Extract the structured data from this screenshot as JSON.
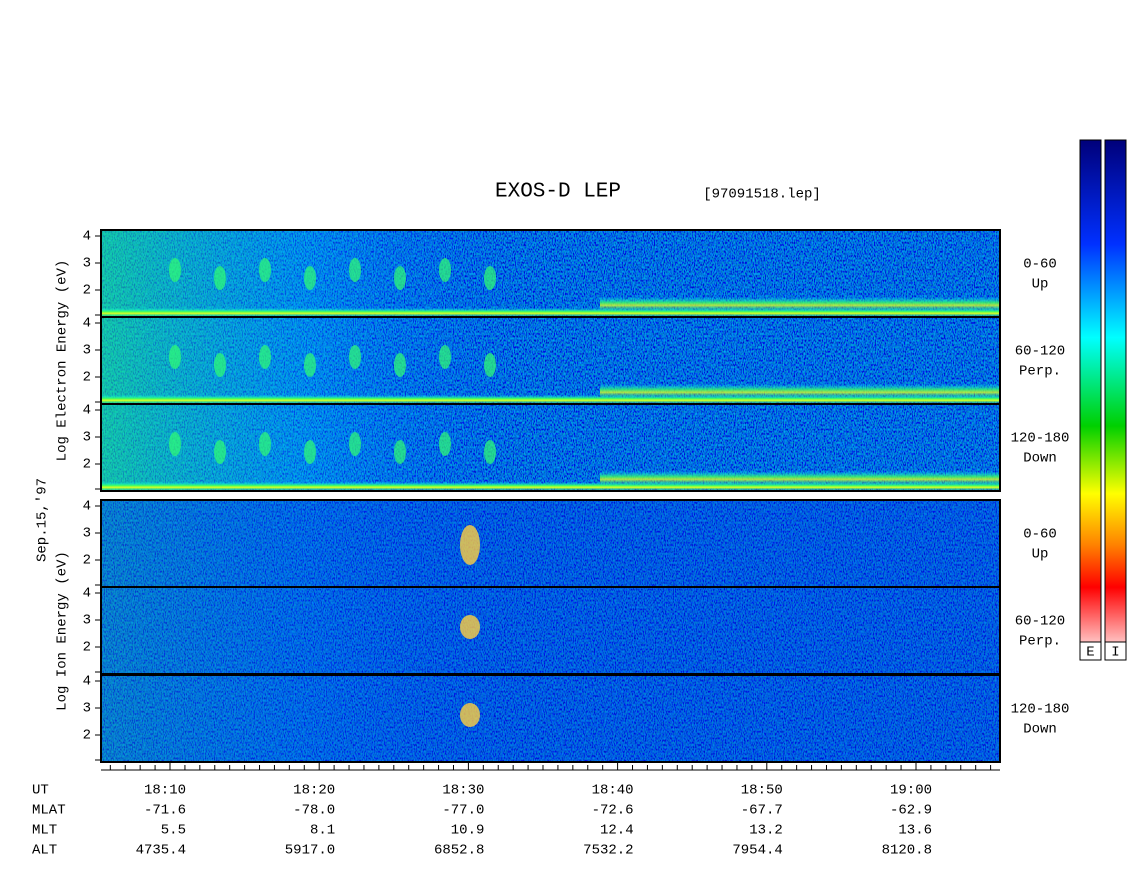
{
  "header": {
    "title": "EXOS-D LEP",
    "file": "[97091518.lep]"
  },
  "date": "Sep.15,'97",
  "groups": [
    {
      "axis_label": "Log Electron Energy (eV)",
      "panels": [
        {
          "angle": "0-60",
          "direction": "Up",
          "ticks": [
            4,
            3,
            2
          ]
        },
        {
          "angle": "60-120",
          "direction": "Perp.",
          "ticks": [
            4,
            3,
            2
          ]
        },
        {
          "angle": "120-180",
          "direction": "Down",
          "ticks": [
            4,
            3,
            2
          ]
        }
      ]
    },
    {
      "axis_label": "Log Ion Energy (eV)",
      "panels": [
        {
          "angle": "0-60",
          "direction": "Up",
          "ticks": [
            4,
            3,
            2
          ]
        },
        {
          "angle": "60-120",
          "direction": "Perp.",
          "ticks": [
            4,
            3,
            2
          ]
        },
        {
          "angle": "120-180",
          "direction": "Down",
          "ticks": [
            4,
            3,
            2
          ]
        }
      ]
    }
  ],
  "time_axis": {
    "rows": [
      {
        "label": "UT",
        "values": [
          "18:10",
          "18:20",
          "18:30",
          "18:40",
          "18:50",
          "19:00"
        ]
      },
      {
        "label": "MLAT",
        "values": [
          "-71.6",
          "-78.0",
          "-77.0",
          "-72.6",
          "-67.7",
          "-62.9"
        ]
      },
      {
        "label": "MLT",
        "values": [
          "5.5",
          "8.1",
          "10.9",
          "12.4",
          "13.2",
          "13.6"
        ]
      },
      {
        "label": "ALT",
        "values": [
          "4735.4",
          "5917.0",
          "6852.8",
          "7532.2",
          "7954.4",
          "8120.8"
        ]
      }
    ]
  },
  "colorbars": [
    "E",
    "I"
  ]
}
